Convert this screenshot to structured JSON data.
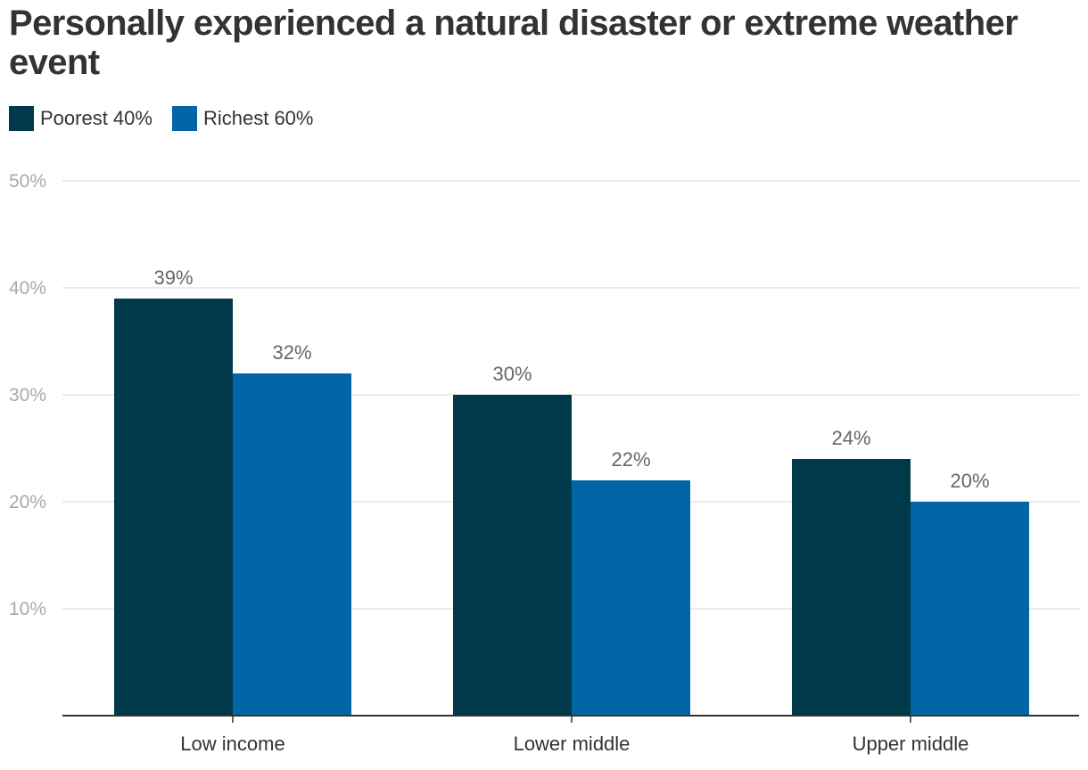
{
  "chart_data": {
    "type": "bar",
    "title": "Personally experienced a natural disaster or extreme weather event",
    "categories": [
      "Low income",
      "Lower middle",
      "Upper middle"
    ],
    "series": [
      {
        "name": "Poorest 40%",
        "color": "#003a4a",
        "values": [
          39,
          30,
          24
        ]
      },
      {
        "name": "Richest 60%",
        "color": "#0066a6",
        "values": [
          32,
          22,
          20
        ]
      }
    ],
    "value_labels": [
      [
        "39%",
        "30%",
        "24%"
      ],
      [
        "32%",
        "22%",
        "20%"
      ]
    ],
    "y_ticks": [
      10,
      20,
      30,
      40,
      50
    ],
    "y_tick_labels": [
      "10%",
      "20%",
      "30%",
      "40%",
      "50%"
    ],
    "ylim": [
      0,
      50
    ],
    "xlabel": "",
    "ylabel": "",
    "grid": true,
    "legend_position": "top-left"
  }
}
